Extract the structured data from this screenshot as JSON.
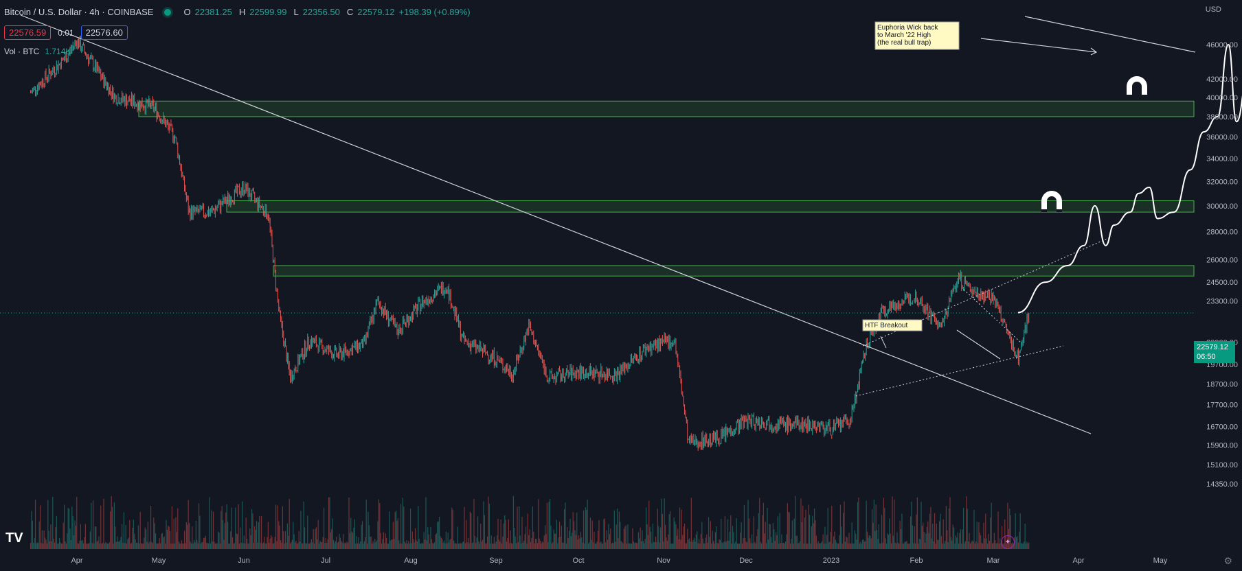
{
  "header": {
    "symbol": "Bitcoin / U.S. Dollar · 4h · COINBASE",
    "open_label": "O",
    "open": "22381.25",
    "high_label": "H",
    "high": "22599.99",
    "low_label": "L",
    "low": "22356.50",
    "close_label": "C",
    "close": "22579.12",
    "change": "+198.39 (+0.89%)",
    "bid": "22576.59",
    "spread": "0.01",
    "ask": "22576.60",
    "vol_label": "Vol · BTC",
    "vol_value": "1.714K",
    "currency": "USD"
  },
  "price_tag": {
    "price": "22579.12",
    "countdown": "06:50"
  },
  "chart_data": {
    "type": "candlestick",
    "title": "Bitcoin / U.S. Dollar · 4h · COINBASE",
    "xlabel": "",
    "ylabel": "",
    "x_ticks": [
      "Apr",
      "May",
      "Jun",
      "Jul",
      "Aug",
      "Sep",
      "Oct",
      "Nov",
      "Dec",
      "2023",
      "Feb",
      "Mar",
      "Apr",
      "May"
    ],
    "y_ticks": [
      46000,
      42000,
      40000,
      38000,
      36000,
      34000,
      32000,
      30000,
      28000,
      26000,
      24500,
      23300,
      20900,
      19700,
      18700,
      17700,
      16700,
      15900,
      15100,
      14350
    ],
    "y_scale": "log",
    "series": [
      {
        "dates": [
          "2022-03-15",
          "2022-03-28",
          "2022-04-01",
          "2022-04-15",
          "2022-04-29",
          "2022-05-07",
          "2022-05-12",
          "2022-05-20",
          "2022-06-01",
          "2022-06-10",
          "2022-06-14",
          "2022-06-18",
          "2022-06-25",
          "2022-07-05",
          "2022-07-15",
          "2022-07-20",
          "2022-07-27",
          "2022-08-05",
          "2022-08-14",
          "2022-08-20",
          "2022-09-01",
          "2022-09-07",
          "2022-09-13",
          "2022-09-20",
          "2022-10-01",
          "2022-10-15",
          "2022-10-26",
          "2022-11-05",
          "2022-11-08",
          "2022-11-10",
          "2022-11-21",
          "2022-12-01",
          "2022-12-15",
          "2022-12-25",
          "2023-01-01",
          "2023-01-08",
          "2023-01-14",
          "2023-01-20",
          "2023-02-01",
          "2023-02-10",
          "2023-02-16",
          "2023-02-21",
          "2023-03-01",
          "2023-03-10",
          "2023-03-14"
        ],
        "close": [
          40500,
          44500,
          46500,
          40000,
          39000,
          36000,
          29500,
          29500,
          31500,
          29300,
          22500,
          19000,
          21000,
          20200,
          20800,
          23300,
          21500,
          23200,
          24300,
          21000,
          20000,
          19200,
          21800,
          19000,
          19300,
          19200,
          20600,
          21000,
          18000,
          16000,
          16200,
          17000,
          16800,
          16800,
          16600,
          17000,
          20800,
          22800,
          23600,
          21700,
          24800,
          24000,
          23500,
          20000,
          22579
        ]
      }
    ],
    "zones": [
      {
        "low": 38000,
        "high": 39600,
        "label": ""
      },
      {
        "low": 29500,
        "high": 30400,
        "label": ""
      },
      {
        "low": 24900,
        "high": 25600,
        "label": ""
      }
    ],
    "projection": [
      {
        "date": "2023-03-10",
        "price": 22600
      },
      {
        "date": "2023-03-20",
        "price": 24500
      },
      {
        "date": "2023-03-28",
        "price": 25600
      },
      {
        "date": "2023-04-03",
        "price": 27000
      },
      {
        "date": "2023-04-07",
        "price": 30000
      },
      {
        "date": "2023-04-11",
        "price": 27000
      },
      {
        "date": "2023-04-14",
        "price": 28500
      },
      {
        "date": "2023-04-20",
        "price": 29500
      },
      {
        "date": "2023-04-23",
        "price": 31000
      },
      {
        "date": "2023-04-27",
        "price": 31500
      },
      {
        "date": "2023-04-30",
        "price": 29000
      },
      {
        "date": "2023-05-06",
        "price": 29500
      },
      {
        "date": "2023-05-12",
        "price": 33000
      },
      {
        "date": "2023-05-17",
        "price": 36500
      },
      {
        "date": "2023-05-22",
        "price": 38000
      },
      {
        "date": "2023-05-26",
        "price": 46000
      },
      {
        "date": "2023-05-29",
        "price": 37500
      },
      {
        "date": "2023-06-02",
        "price": 42000
      }
    ],
    "current_price": 22579.12,
    "annotations": [
      {
        "text": "Euphoria Wick back to March '22 High (the real bull trap)",
        "type": "note"
      },
      {
        "text": "HTF Breakout",
        "type": "note"
      }
    ],
    "grid": false
  },
  "colors": {
    "background": "#131722",
    "up": "#26a69a",
    "down": "#ef5350",
    "zone": "#1e3a2a",
    "zone_border": "#4caf50",
    "price_tag": "#089981",
    "axis_text": "#b2b5be",
    "projection": "#ffffff"
  },
  "icons": [
    "magnet-icon",
    "magnet-icon",
    "tradingview-logo",
    "settings-gear-icon",
    "alert-star-icon"
  ]
}
